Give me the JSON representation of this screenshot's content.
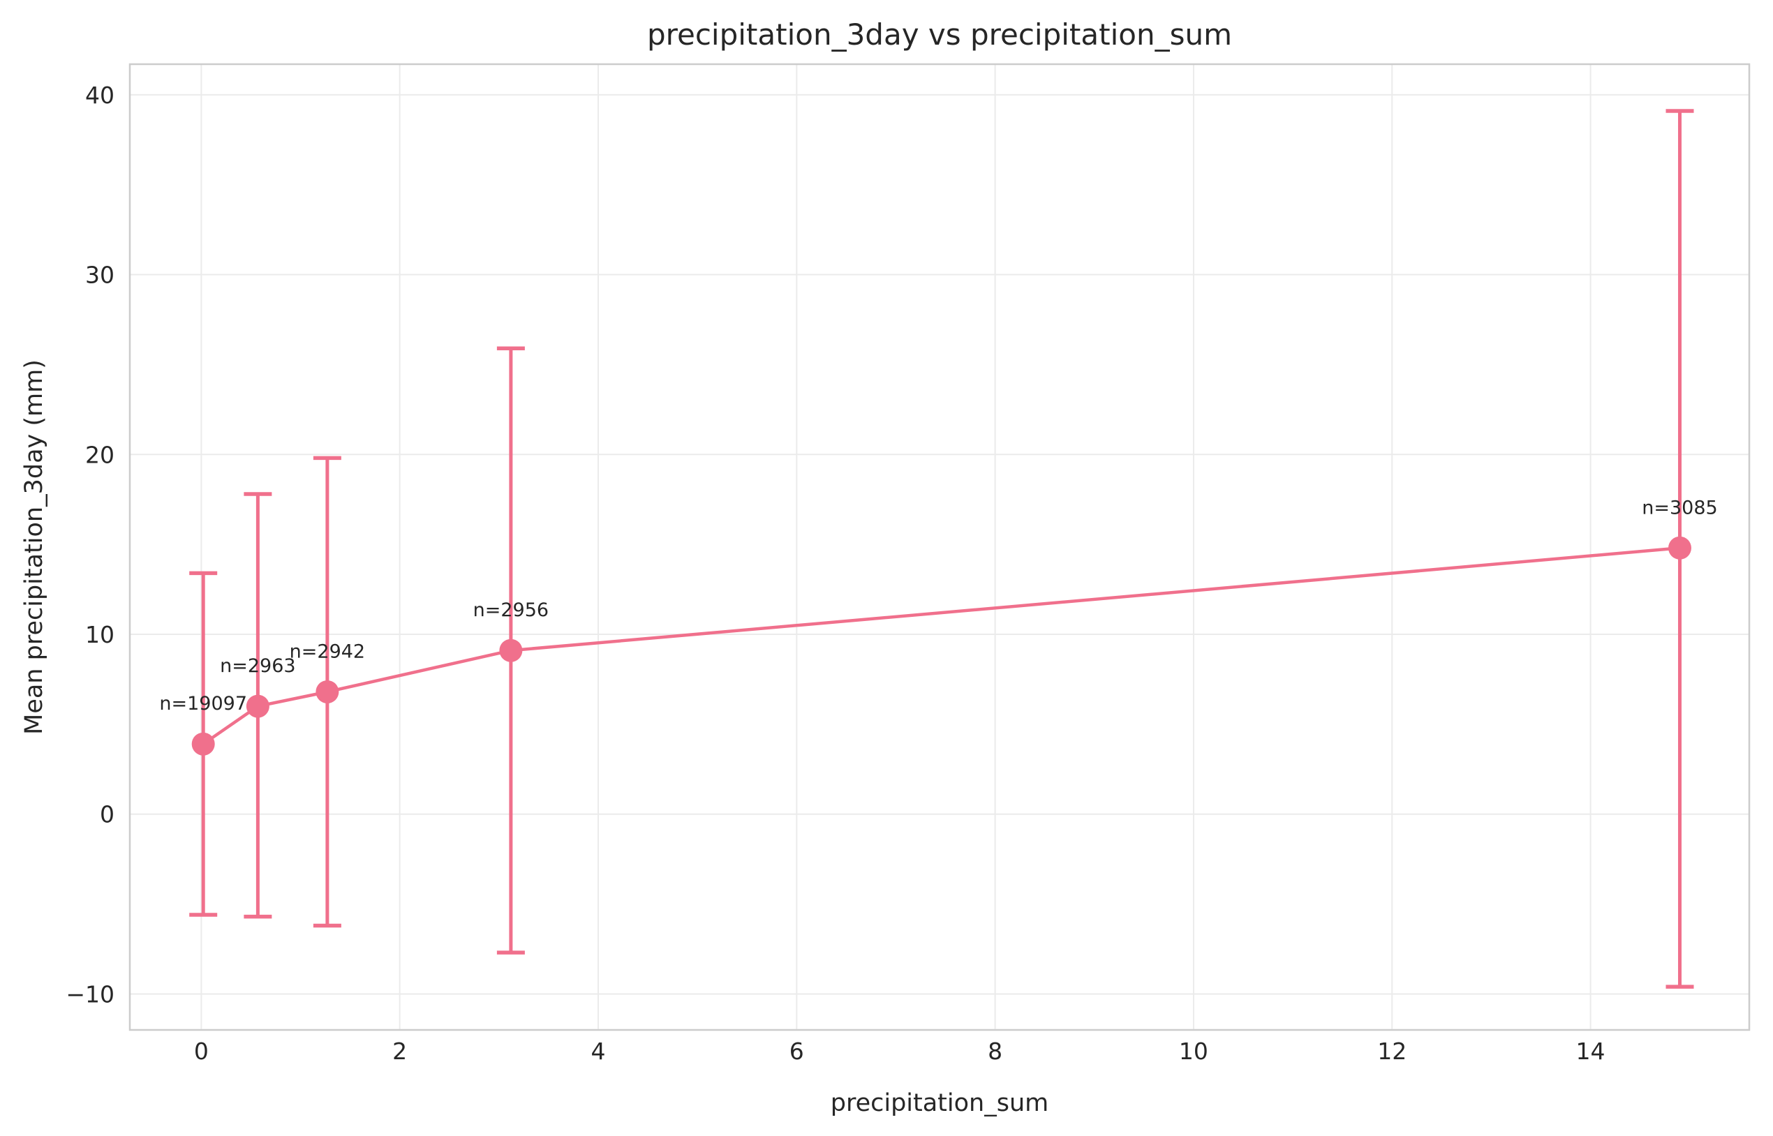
{
  "chart_data": {
    "type": "line",
    "title": "precipitation_3day vs precipitation_sum",
    "xlabel": "precipitation_sum",
    "ylabel": "Mean precipitation_3day (mm)",
    "xlim": [
      -0.72,
      15.6
    ],
    "ylim": [
      -12.0,
      41.7
    ],
    "xticks": [
      0,
      2,
      4,
      6,
      8,
      10,
      12,
      14
    ],
    "yticks": [
      -10,
      0,
      10,
      20,
      30,
      40
    ],
    "ytick_labels": [
      "−10",
      "0",
      "10",
      "20",
      "30",
      "40"
    ],
    "grid": true,
    "color": "#f0708c",
    "series": [
      {
        "x": [
          0.02,
          0.57,
          1.27,
          3.12,
          14.9
        ],
        "y": [
          3.9,
          6.0,
          6.8,
          9.1,
          14.8
        ],
        "err_low": [
          -5.6,
          -5.7,
          -6.2,
          -7.7,
          -9.6
        ],
        "err_high": [
          13.4,
          17.8,
          19.8,
          25.9,
          39.1
        ],
        "annotations": [
          "n=19097",
          "n=2963",
          "n=2942",
          "n=2956",
          "n=3085"
        ]
      }
    ]
  }
}
